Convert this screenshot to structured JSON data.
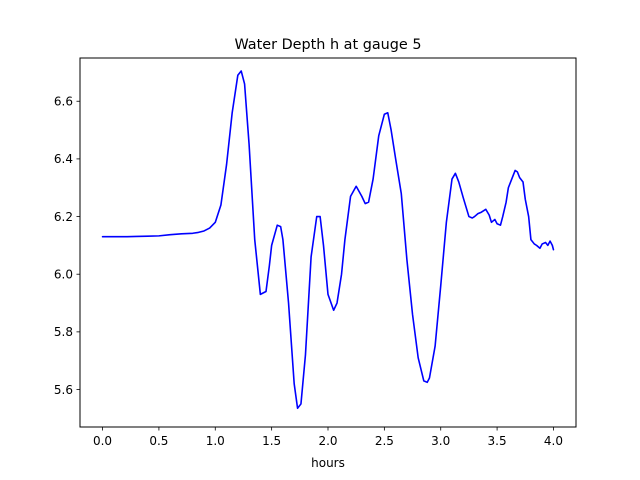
{
  "chart_data": {
    "type": "line",
    "title": "Water Depth h at gauge 5",
    "xlabel": "hours",
    "ylabel": "",
    "xlim": [
      -0.2,
      4.2
    ],
    "ylim": [
      5.47,
      6.75
    ],
    "xticks": [
      0.0,
      0.5,
      1.0,
      1.5,
      2.0,
      2.5,
      3.0,
      3.5,
      4.0
    ],
    "xtick_labels": [
      "0.0",
      "0.5",
      "1.0",
      "1.5",
      "2.0",
      "2.5",
      "3.0",
      "3.5",
      "4.0"
    ],
    "yticks": [
      5.6,
      5.8,
      6.0,
      6.2,
      6.4,
      6.6
    ],
    "ytick_labels": [
      "5.6",
      "5.8",
      "6.0",
      "6.2",
      "6.4",
      "6.6"
    ],
    "grid": false,
    "legend": "none",
    "series": [
      {
        "color": "#0000ff",
        "x": [
          0.0,
          0.1,
          0.2,
          0.3,
          0.4,
          0.5,
          0.6,
          0.7,
          0.8,
          0.85,
          0.9,
          0.95,
          1.0,
          1.05,
          1.1,
          1.15,
          1.2,
          1.23,
          1.26,
          1.3,
          1.35,
          1.4,
          1.45,
          1.48,
          1.5,
          1.55,
          1.58,
          1.6,
          1.65,
          1.7,
          1.73,
          1.76,
          1.8,
          1.85,
          1.9,
          1.93,
          1.96,
          2.0,
          2.05,
          2.08,
          2.12,
          2.15,
          2.2,
          2.25,
          2.3,
          2.33,
          2.36,
          2.4,
          2.45,
          2.5,
          2.53,
          2.56,
          2.6,
          2.65,
          2.7,
          2.75,
          2.8,
          2.85,
          2.88,
          2.9,
          2.95,
          3.0,
          3.05,
          3.1,
          3.13,
          3.16,
          3.2,
          3.25,
          3.28,
          3.3,
          3.33,
          3.36,
          3.4,
          3.43,
          3.45,
          3.48,
          3.5,
          3.53,
          3.55,
          3.58,
          3.6,
          3.63,
          3.66,
          3.68,
          3.7,
          3.73,
          3.75,
          3.78,
          3.8,
          3.83,
          3.85,
          3.88,
          3.9,
          3.93,
          3.95,
          3.97,
          3.99,
          4.0
        ],
        "y": [
          6.13,
          6.13,
          6.13,
          6.131,
          6.132,
          6.133,
          6.137,
          6.14,
          6.142,
          6.145,
          6.15,
          6.16,
          6.18,
          6.24,
          6.38,
          6.56,
          6.69,
          6.705,
          6.66,
          6.45,
          6.12,
          5.93,
          5.94,
          6.03,
          6.1,
          6.17,
          6.165,
          6.12,
          5.9,
          5.62,
          5.535,
          5.55,
          5.72,
          6.06,
          6.2,
          6.2,
          6.1,
          5.93,
          5.875,
          5.9,
          6.0,
          6.12,
          6.27,
          6.305,
          6.27,
          6.245,
          6.25,
          6.33,
          6.48,
          6.555,
          6.56,
          6.5,
          6.4,
          6.28,
          6.05,
          5.86,
          5.71,
          5.63,
          5.625,
          5.64,
          5.75,
          5.96,
          6.18,
          6.33,
          6.35,
          6.32,
          6.265,
          6.2,
          6.195,
          6.2,
          6.21,
          6.215,
          6.225,
          6.205,
          6.18,
          6.19,
          6.175,
          6.17,
          6.2,
          6.25,
          6.3,
          6.33,
          6.36,
          6.355,
          6.335,
          6.32,
          6.26,
          6.2,
          6.12,
          6.105,
          6.1,
          6.09,
          6.105,
          6.11,
          6.1,
          6.115,
          6.1,
          6.085
        ]
      }
    ]
  }
}
